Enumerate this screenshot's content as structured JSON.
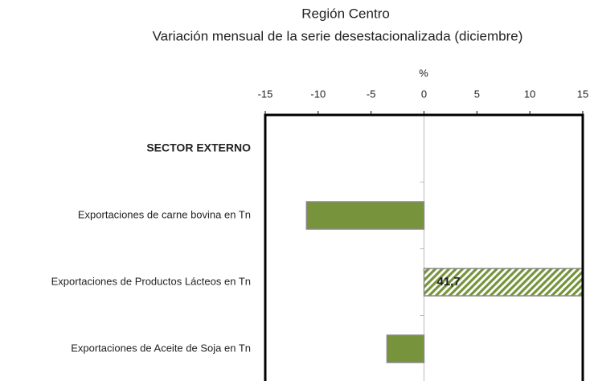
{
  "chart_data": {
    "type": "bar",
    "orientation": "horizontal",
    "title": "Región Centro",
    "subtitle": "Variación mensual de la serie desestacionalizada  (diciembre)",
    "x_label": "%",
    "categories": [
      "SECTOR EXTERNO",
      "Exportaciones de carne bovina en Tn",
      "Exportaciones de Productos Lácteos en Tn",
      "Exportaciones de Aceite de Soja en Tn"
    ],
    "values": [
      null,
      -11.1,
      41.7,
      -3.5
    ],
    "value_labels": [
      null,
      null,
      "41,7",
      null
    ],
    "color": "#77933c",
    "xlim": [
      -15,
      15
    ],
    "xticks": [
      -15,
      -10,
      -5,
      0,
      5,
      10,
      15
    ],
    "grid": false
  }
}
